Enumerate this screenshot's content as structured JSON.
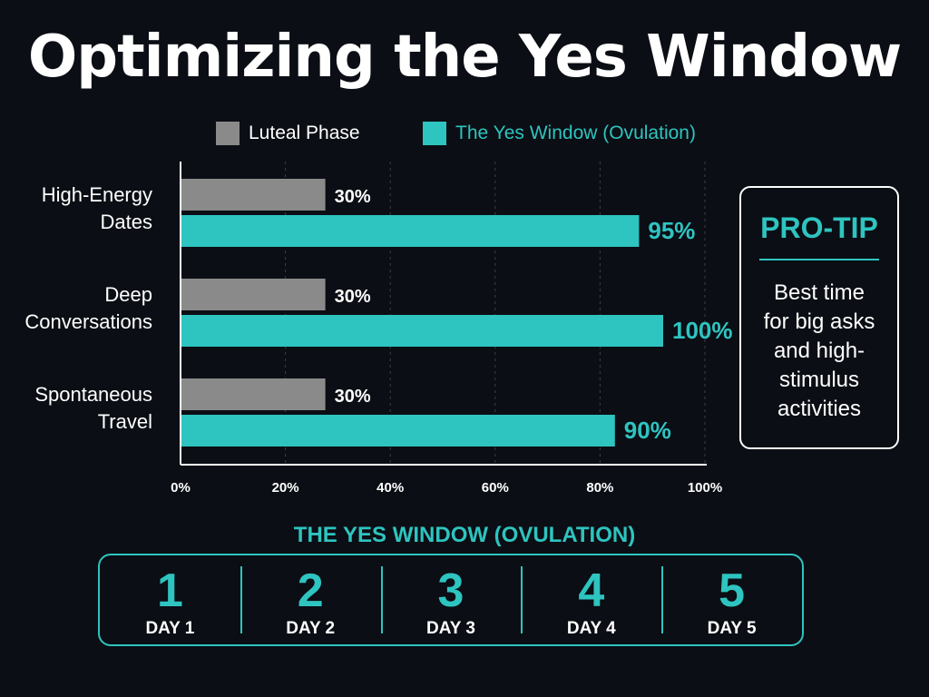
{
  "title": "Optimizing the Yes Window",
  "legend": [
    {
      "label": "Luteal Phase",
      "color": "#8a8a8a",
      "text_color": "#ffffff"
    },
    {
      "label": "The Yes Window (Ovulation)",
      "color": "#2ec4c0",
      "text_color": "#2ec4c0"
    }
  ],
  "chart_data": {
    "type": "bar",
    "orientation": "horizontal",
    "categories": [
      "High-Energy Dates",
      "Deep Conversations",
      "Spontaneous Travel"
    ],
    "category_lines": [
      [
        "High-Energy",
        "Dates"
      ],
      [
        "Deep",
        "Conversations"
      ],
      [
        "Spontaneous",
        "Travel"
      ]
    ],
    "series": [
      {
        "name": "Luteal Phase",
        "color": "#8a8a8a",
        "values": [
          30,
          30,
          30
        ],
        "labels": [
          "30%",
          "30%",
          "30%"
        ]
      },
      {
        "name": "The Yes Window (Ovulation)",
        "color": "#2ec4c0",
        "values": [
          95,
          100,
          90
        ],
        "labels": [
          "95%",
          "100%",
          "90%"
        ]
      }
    ],
    "xlim": [
      0,
      100
    ],
    "xticks": [
      "0%",
      "20%",
      "40%",
      "60%",
      "80%",
      "100%"
    ],
    "grid": true
  },
  "protip": {
    "title": "PRO-TIP",
    "body_lines": [
      "Best time",
      "for big asks",
      "and high-",
      "stimulus",
      "activities"
    ]
  },
  "window": {
    "label": "THE YES WINDOW (OVULATION)",
    "days": [
      {
        "num": "1",
        "label": "DAY 1"
      },
      {
        "num": "2",
        "label": "DAY 2"
      },
      {
        "num": "3",
        "label": "DAY 3"
      },
      {
        "num": "4",
        "label": "DAY 4"
      },
      {
        "num": "5",
        "label": "DAY 5"
      }
    ]
  }
}
